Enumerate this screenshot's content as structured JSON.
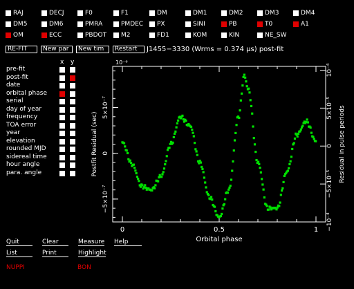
{
  "params": [
    {
      "label": "RAJ",
      "on": false
    },
    {
      "label": "DECJ",
      "on": false
    },
    {
      "label": "F0",
      "on": false
    },
    {
      "label": "F1",
      "on": false
    },
    {
      "label": "DM",
      "on": false
    },
    {
      "label": "DM1",
      "on": false
    },
    {
      "label": "DM2",
      "on": false
    },
    {
      "label": "DM3",
      "on": false
    },
    {
      "label": "DM4",
      "on": false
    },
    {
      "label": "DM5",
      "on": false
    },
    {
      "label": "DM6",
      "on": false
    },
    {
      "label": "PMRA",
      "on": false
    },
    {
      "label": "PMDEC",
      "on": false
    },
    {
      "label": "PX",
      "on": false
    },
    {
      "label": "SINI",
      "on": false
    },
    {
      "label": "PB",
      "on": true
    },
    {
      "label": "T0",
      "on": true
    },
    {
      "label": "A1",
      "on": true
    },
    {
      "label": "OM",
      "on": true
    },
    {
      "label": "ECC",
      "on": true
    },
    {
      "label": "PBDOT",
      "on": false
    },
    {
      "label": "M2",
      "on": false
    },
    {
      "label": "FD1",
      "on": false
    },
    {
      "label": "KOM",
      "on": false
    },
    {
      "label": "KIN",
      "on": false
    },
    {
      "label": "NE_SW",
      "on": false
    }
  ],
  "actions": {
    "refit": "RE-FIT",
    "newpar": "New par",
    "newtim": "New tim",
    "restart": "Restart"
  },
  "fit_title": "J1455−3330 (Wrms = 0.374 μs) post-fit",
  "axis_header": {
    "x": "x",
    "y": "y"
  },
  "plot_options": [
    {
      "label": "pre-fit",
      "x": false,
      "y": false
    },
    {
      "label": "post-fit",
      "x": false,
      "y": true
    },
    {
      "label": "date",
      "x": false,
      "y": false
    },
    {
      "label": "orbital phase",
      "x": true,
      "y": false
    },
    {
      "label": "serial",
      "x": false,
      "y": false
    },
    {
      "label": "day of year",
      "x": false,
      "y": false
    },
    {
      "label": "frequency",
      "x": false,
      "y": false
    },
    {
      "label": "TOA error",
      "x": false,
      "y": false
    },
    {
      "label": "year",
      "x": false,
      "y": false
    },
    {
      "label": "elevation",
      "x": false,
      "y": false
    },
    {
      "label": "rounded MJD",
      "x": false,
      "y": false
    },
    {
      "label": "sidereal time",
      "x": false,
      "y": false
    },
    {
      "label": "hour angle",
      "x": false,
      "y": false
    },
    {
      "label": "para. angle",
      "x": false,
      "y": false
    }
  ],
  "bottom": {
    "quit": "Quit",
    "clear": "Clear",
    "measure": "Measure",
    "help": "Help",
    "list": "List",
    "print": "Print",
    "highlight": "Highlight",
    "nuppi": "NUPPI",
    "bon": "BON"
  },
  "chart_data": {
    "type": "scatter",
    "xlabel": "Orbital phase",
    "ylabel": "Postfit Residual (sec)",
    "ylabel_right": "Residual in pulse periods",
    "xlim": [
      -0.05,
      1.05
    ],
    "ylim": [
      -7.5e-07,
      9.5e-07
    ],
    "x_ticks": [
      "0",
      "0.5",
      "1"
    ],
    "x_tick_values": [
      0,
      0.5,
      1
    ],
    "y_tick_labels": [
      "−5×10⁻⁷",
      "0",
      "5×10⁻⁷"
    ],
    "y_tick_values": [
      -5e-07,
      0,
      5e-07
    ],
    "y_top_label": "10⁻⁶",
    "right_tick_labels": [
      "−10⁻⁴",
      "−5×10⁻⁵",
      "0",
      "5×10⁻⁵",
      "10⁻⁴"
    ],
    "marker_color": "#00e000",
    "series": [
      {
        "x": [
          0,
          0.05,
          0.1,
          0.15,
          0.2,
          0.25,
          0.3,
          0.35,
          0.4,
          0.45,
          0.5,
          0.55,
          0.6,
          0.63,
          0.65,
          0.7,
          0.75,
          0.8,
          0.85,
          0.9,
          0.95,
          1.0
        ],
        "y": [
          1.2e-07,
          -1.2e-07,
          -3.6e-07,
          -4e-07,
          -2.5e-07,
          1e-07,
          4e-07,
          3e-07,
          -1e-07,
          -4.8e-07,
          -7e-07,
          -4e-07,
          4e-07,
          8.5e-07,
          7e-07,
          -1e-07,
          -6e-07,
          -6e-07,
          -2e-07,
          2e-07,
          3.5e-07,
          1.3e-07
        ]
      }
    ]
  }
}
